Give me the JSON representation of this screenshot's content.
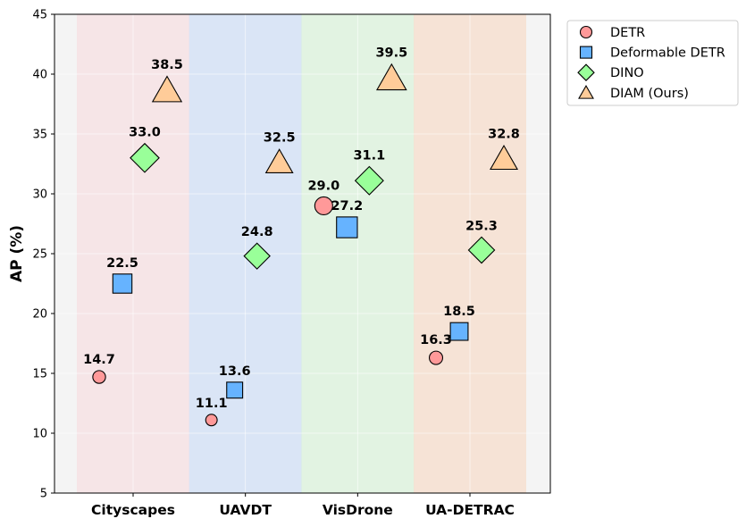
{
  "chart_data": {
    "type": "scatter",
    "title": "",
    "xlabel": "",
    "ylabel": "AP (%)",
    "ylim": [
      5,
      45
    ],
    "yticks": [
      5,
      10,
      15,
      20,
      25,
      30,
      35,
      40,
      45
    ],
    "categories": [
      "Cityscapes",
      "UAVDT",
      "VisDrone",
      "UA-DETRAC"
    ],
    "category_band_colors": [
      "#f8d9dc",
      "#c4d9f7",
      "#d3f3d3",
      "#f8d6bd"
    ],
    "grid": true,
    "legend_position": "outside-top-right",
    "series": [
      {
        "name": "DETR",
        "marker": "circle",
        "color": "#ff9999",
        "values": [
          14.7,
          11.1,
          29.0,
          16.3
        ],
        "labels": [
          "14.7",
          "11.1",
          "29.0",
          "16.3"
        ]
      },
      {
        "name": "Deformable DETR",
        "marker": "square",
        "color": "#66b3ff",
        "values": [
          22.5,
          13.6,
          27.2,
          18.5
        ],
        "labels": [
          "22.5",
          "13.6",
          "27.2",
          "18.5"
        ]
      },
      {
        "name": "DINO",
        "marker": "diamond",
        "color": "#99ff99",
        "values": [
          33.0,
          24.8,
          31.1,
          25.3
        ],
        "labels": [
          "33.0",
          "24.8",
          "31.1",
          "25.3"
        ]
      },
      {
        "name": "DIAM (Ours)",
        "marker": "triangle",
        "color": "#ffcc99",
        "values": [
          38.5,
          32.5,
          39.5,
          32.8
        ],
        "labels": [
          "38.5",
          "32.5",
          "39.5",
          "32.8"
        ]
      }
    ]
  }
}
